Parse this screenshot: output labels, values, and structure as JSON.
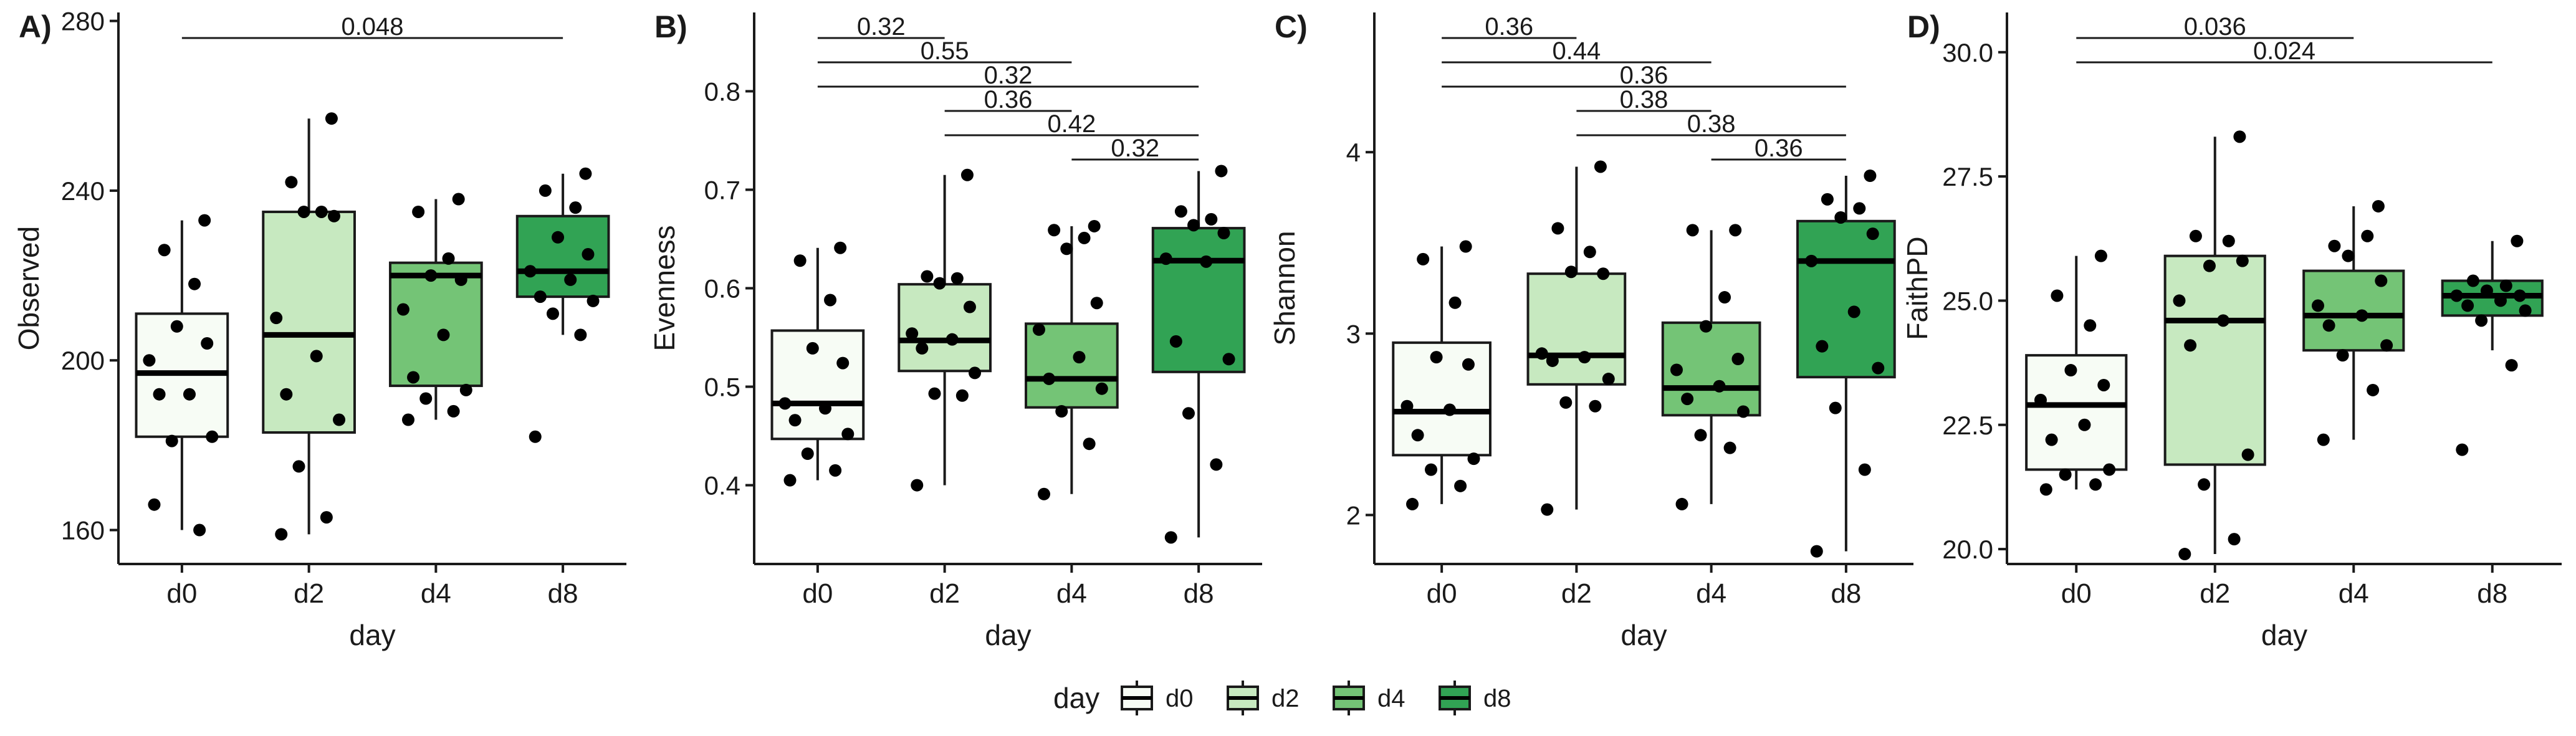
{
  "chart_data": [
    {
      "type": "box",
      "panel_label": "A)",
      "xlabel": "day",
      "ylabel": "Observed",
      "categories": [
        "d0",
        "d2",
        "d4",
        "d8"
      ],
      "ylim": [
        152,
        282
      ],
      "yticks": [
        160,
        200,
        240,
        280
      ],
      "ytick_labels": [
        "160",
        "200",
        "240",
        "280"
      ],
      "boxes": [
        {
          "category": "d0",
          "q1": 182,
          "median": 197,
          "q3": 211,
          "whisker_low": 160,
          "whisker_high": 233
        },
        {
          "category": "d2",
          "q1": 183,
          "median": 206,
          "q3": 235,
          "whisker_low": 159,
          "whisker_high": 257
        },
        {
          "category": "d4",
          "q1": 194,
          "median": 220,
          "q3": 223,
          "whisker_low": 186,
          "whisker_high": 238
        },
        {
          "category": "d8",
          "q1": 215,
          "median": 221,
          "q3": 234,
          "whisker_low": 206,
          "whisker_high": 244
        }
      ],
      "points": [
        [
          166,
          160,
          181,
          182,
          192,
          192,
          200,
          204,
          208,
          218,
          226,
          233
        ],
        [
          159,
          163,
          175,
          186,
          192,
          201,
          210,
          234,
          235,
          235,
          242,
          257
        ],
        [
          186,
          188,
          191,
          193,
          196,
          206,
          212,
          219,
          220,
          224,
          235,
          238
        ],
        [
          182,
          206,
          211,
          214,
          215,
          219,
          221,
          225,
          229,
          236,
          240,
          244
        ]
      ],
      "brackets": [
        {
          "from": "d0",
          "to": "d8",
          "label": "0.048"
        }
      ]
    },
    {
      "type": "box",
      "panel_label": "B)",
      "xlabel": "day",
      "ylabel": "Evenness",
      "categories": [
        "d0",
        "d2",
        "d4",
        "d8"
      ],
      "ylim": [
        0.32,
        0.88
      ],
      "yticks": [
        0.4,
        0.5,
        0.6,
        0.7,
        0.8
      ],
      "ytick_labels": [
        "0.4",
        "0.5",
        "0.6",
        "0.7",
        "0.8"
      ],
      "boxes": [
        {
          "category": "d0",
          "q1": 0.447,
          "median": 0.483,
          "q3": 0.557,
          "whisker_low": 0.405,
          "whisker_high": 0.641
        },
        {
          "category": "d2",
          "q1": 0.516,
          "median": 0.547,
          "q3": 0.604,
          "whisker_low": 0.4,
          "whisker_high": 0.715
        },
        {
          "category": "d4",
          "q1": 0.479,
          "median": 0.508,
          "q3": 0.564,
          "whisker_low": 0.391,
          "whisker_high": 0.663
        },
        {
          "category": "d8",
          "q1": 0.515,
          "median": 0.628,
          "q3": 0.661,
          "whisker_low": 0.347,
          "whisker_high": 0.719
        }
      ],
      "points": [
        [
          0.405,
          0.415,
          0.432,
          0.452,
          0.466,
          0.478,
          0.483,
          0.524,
          0.539,
          0.588,
          0.628,
          0.641
        ],
        [
          0.4,
          0.491,
          0.493,
          0.514,
          0.539,
          0.548,
          0.554,
          0.581,
          0.605,
          0.61,
          0.612,
          0.715
        ],
        [
          0.391,
          0.442,
          0.475,
          0.498,
          0.508,
          0.53,
          0.558,
          0.585,
          0.64,
          0.651,
          0.659,
          0.663
        ],
        [
          0.347,
          0.421,
          0.473,
          0.528,
          0.546,
          0.627,
          0.63,
          0.656,
          0.664,
          0.67,
          0.678,
          0.719
        ]
      ],
      "brackets": [
        {
          "from": "d0",
          "to": "d2",
          "label": "0.32"
        },
        {
          "from": "d0",
          "to": "d4",
          "label": "0.55"
        },
        {
          "from": "d0",
          "to": "d8",
          "label": "0.32"
        },
        {
          "from": "d2",
          "to": "d4",
          "label": "0.36"
        },
        {
          "from": "d2",
          "to": "d8",
          "label": "0.42"
        },
        {
          "from": "d4",
          "to": "d8",
          "label": "0.32"
        }
      ]
    },
    {
      "type": "box",
      "panel_label": "C)",
      "xlabel": "day",
      "ylabel": "Shannon",
      "categories": [
        "d0",
        "d2",
        "d4",
        "d8"
      ],
      "ylim": [
        1.73,
        4.77
      ],
      "yticks": [
        2,
        3,
        4
      ],
      "ytick_labels": [
        "2",
        "3",
        "4"
      ],
      "boxes": [
        {
          "category": "d0",
          "q1": 2.33,
          "median": 2.57,
          "q3": 2.95,
          "whisker_low": 2.06,
          "whisker_high": 3.48
        },
        {
          "category": "d2",
          "q1": 2.72,
          "median": 2.88,
          "q3": 3.33,
          "whisker_low": 2.03,
          "whisker_high": 3.92
        },
        {
          "category": "d4",
          "q1": 2.55,
          "median": 2.7,
          "q3": 3.06,
          "whisker_low": 2.06,
          "whisker_high": 3.57
        },
        {
          "category": "d8",
          "q1": 2.76,
          "median": 3.4,
          "q3": 3.62,
          "whisker_low": 1.8,
          "whisker_high": 3.87
        }
      ],
      "points": [
        [
          2.06,
          2.16,
          2.25,
          2.31,
          2.44,
          2.58,
          2.6,
          2.83,
          2.87,
          3.17,
          3.41,
          3.48
        ],
        [
          2.03,
          2.6,
          2.62,
          2.75,
          2.85,
          2.87,
          2.89,
          3.33,
          3.34,
          3.45,
          3.58,
          3.92
        ],
        [
          2.06,
          2.37,
          2.44,
          2.57,
          2.64,
          2.71,
          2.8,
          2.86,
          3.04,
          3.2,
          3.57,
          3.57
        ],
        [
          1.8,
          2.25,
          2.59,
          2.81,
          2.93,
          3.12,
          3.4,
          3.55,
          3.64,
          3.69,
          3.74,
          3.87
        ]
      ],
      "brackets": [
        {
          "from": "d0",
          "to": "d2",
          "label": "0.36"
        },
        {
          "from": "d0",
          "to": "d4",
          "label": "0.44"
        },
        {
          "from": "d0",
          "to": "d8",
          "label": "0.36"
        },
        {
          "from": "d2",
          "to": "d4",
          "label": "0.38"
        },
        {
          "from": "d2",
          "to": "d8",
          "label": "0.38"
        },
        {
          "from": "d4",
          "to": "d8",
          "label": "0.36"
        }
      ]
    },
    {
      "type": "box",
      "panel_label": "D)",
      "xlabel": "day",
      "ylabel": "FaithPD",
      "categories": [
        "d0",
        "d2",
        "d4",
        "d8"
      ],
      "ylim": [
        19.7,
        30.8
      ],
      "yticks": [
        20.0,
        22.5,
        25.0,
        27.5,
        30.0
      ],
      "ytick_labels": [
        "20.0",
        "22.5",
        "25.0",
        "27.5",
        "30.0"
      ],
      "boxes": [
        {
          "category": "d0",
          "q1": 21.6,
          "median": 22.9,
          "q3": 23.9,
          "whisker_low": 21.2,
          "whisker_high": 25.9
        },
        {
          "category": "d2",
          "q1": 21.7,
          "median": 24.6,
          "q3": 25.9,
          "whisker_low": 19.9,
          "whisker_high": 28.3
        },
        {
          "category": "d4",
          "q1": 24.0,
          "median": 24.7,
          "q3": 25.6,
          "whisker_low": 22.2,
          "whisker_high": 26.9
        },
        {
          "category": "d8",
          "q1": 24.7,
          "median": 25.1,
          "q3": 25.4,
          "whisker_low": 24.0,
          "whisker_high": 26.2
        }
      ],
      "points": [
        [
          21.2,
          21.3,
          21.5,
          21.6,
          22.2,
          22.5,
          23.0,
          23.3,
          23.6,
          24.5,
          25.1,
          25.9
        ],
        [
          19.9,
          20.2,
          21.3,
          21.9,
          24.1,
          24.6,
          25.0,
          25.8,
          25.7,
          26.2,
          26.3,
          28.3
        ],
        [
          22.2,
          23.2,
          23.9,
          24.1,
          24.5,
          24.7,
          24.9,
          25.4,
          25.9,
          26.3,
          26.1,
          26.9
        ],
        [
          22.0,
          23.7,
          24.6,
          24.8,
          24.9,
          25.0,
          25.1,
          25.1,
          25.2,
          25.3,
          25.4,
          26.2
        ]
      ],
      "brackets": [
        {
          "from": "d0",
          "to": "d4",
          "label": "0.036"
        },
        {
          "from": "d0",
          "to": "d8",
          "label": "0.024"
        }
      ]
    }
  ],
  "legend": {
    "title": "day",
    "placement": "bottom",
    "items": [
      {
        "label": "d0",
        "color": "#f7fcf5"
      },
      {
        "label": "d2",
        "color": "#c7e9c0"
      },
      {
        "label": "d4",
        "color": "#74c476"
      },
      {
        "label": "d8",
        "color": "#31a354"
      }
    ]
  },
  "style": {
    "point_color": "#000000",
    "axis_color": "#1a1a1a"
  }
}
